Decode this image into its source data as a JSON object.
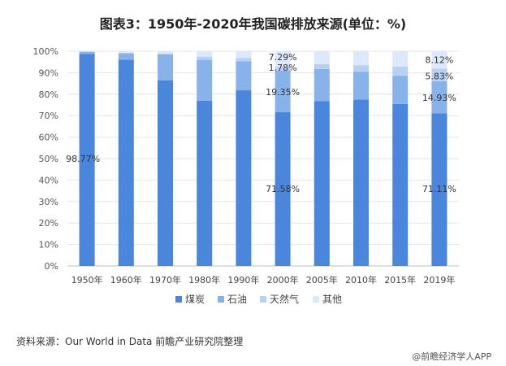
{
  "chart_data": {
    "type": "bar",
    "stacked": true,
    "title": "图表3：1950年-2020年我国碳排放来源(单位：%)",
    "categories": [
      "1950年",
      "1960年",
      "1970年",
      "1980年",
      "1990年",
      "2000年",
      "2005年",
      "2010年",
      "2015年",
      "2019年"
    ],
    "ylim": [
      0,
      100
    ],
    "yticks": [
      "0%",
      "10%",
      "20%",
      "30%",
      "40%",
      "50%",
      "60%",
      "70%",
      "80%",
      "90%",
      "100%"
    ],
    "legend_position": "bottom",
    "series": [
      {
        "name": "煤炭",
        "color": "#4a86dc",
        "values": [
          98.77,
          96.0,
          86.5,
          77.0,
          81.8,
          71.58,
          76.7,
          77.5,
          75.4,
          71.11
        ]
      },
      {
        "name": "石油",
        "color": "#88b2ea",
        "values": [
          1.0,
          3.0,
          12.0,
          19.0,
          13.5,
          19.35,
          15.0,
          13.0,
          13.2,
          14.93
        ]
      },
      {
        "name": "天然气",
        "color": "#b7d1f3",
        "values": [
          0.0,
          0.3,
          0.5,
          1.5,
          1.5,
          1.78,
          2.3,
          3.0,
          4.3,
          5.83
        ]
      },
      {
        "name": "其他",
        "color": "#dde9fa",
        "values": [
          0.23,
          0.7,
          1.0,
          2.5,
          3.2,
          7.29,
          6.0,
          6.5,
          7.1,
          8.12
        ]
      }
    ],
    "annotations": [
      {
        "category": "1950年",
        "text": "98.77%"
      },
      {
        "category": "2000年",
        "text": "71.58%"
      },
      {
        "category": "2000年",
        "text": "19.35%"
      },
      {
        "category": "2000年",
        "text": "1.78%"
      },
      {
        "category": "2000年",
        "text": "7.29%"
      },
      {
        "category": "2019年",
        "text": "71.11%"
      },
      {
        "category": "2019年",
        "text": "14.93%"
      },
      {
        "category": "2019年",
        "text": "5.83%"
      },
      {
        "category": "2019年",
        "text": "8.12%"
      }
    ]
  },
  "footer": {
    "source": "资料来源：Our World in Data 前瞻产业研究院整理",
    "credit": "@前瞻经济学人APP"
  }
}
